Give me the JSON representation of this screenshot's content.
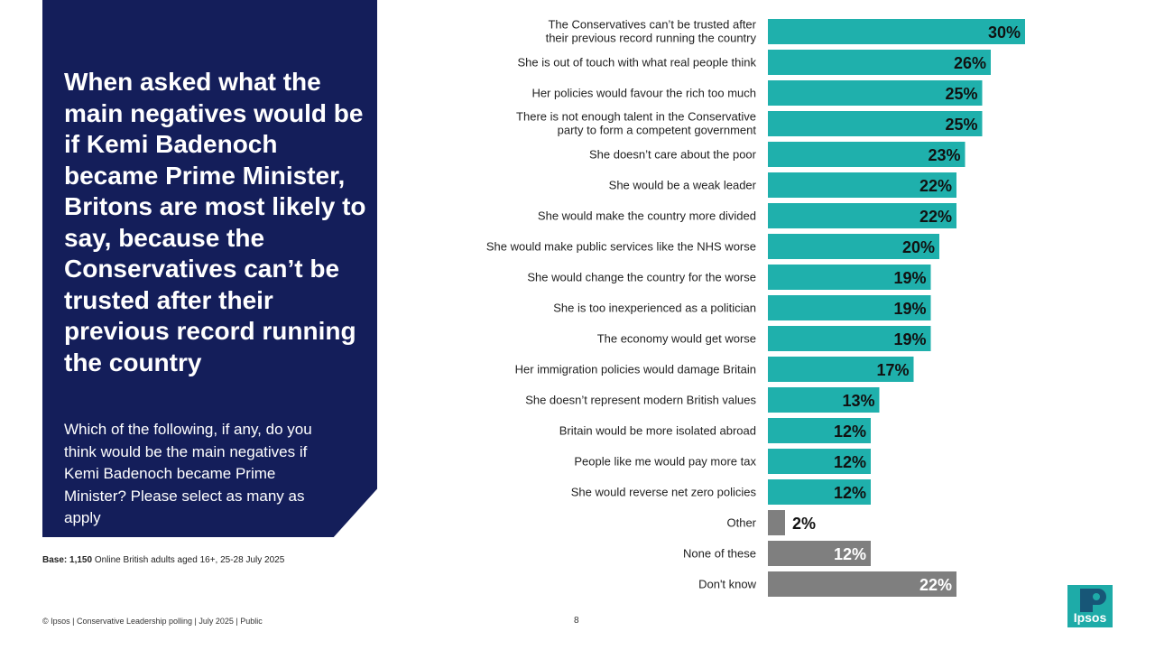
{
  "headline": "When asked what the main negatives would be if Kemi Badenoch became Prime Minister, Britons are most likely to say, because the Conservatives can’t be trusted after their previous record running the country",
  "question": "Which of the following, if any, do you think would be the main negatives  if Kemi Badenoch became Prime Minister? Please select as many as apply",
  "base": {
    "label": "Base:",
    "count": "1,150",
    "text": " Online British adults aged 16+,  25-28 July 2025"
  },
  "footer": "© Ipsos | Conservative Leadership polling | July 2025 | Public",
  "page_number": "8",
  "logo": {
    "text": "Ipsos",
    "icon": "ipsos-logo-icon",
    "color": "#1eaba8"
  },
  "colors": {
    "panel": "#141e5a",
    "bar": "#1fb0ac",
    "bar_other": "#7f7f7f"
  },
  "chart_data": {
    "type": "bar",
    "orientation": "horizontal",
    "title": "",
    "xlabel": "",
    "ylabel": "",
    "value_suffix": "%",
    "xlim": [
      0,
      30
    ],
    "grid": false,
    "legend": "none",
    "categories": [
      [
        "The Conservatives can’t be trusted after",
        "their previous record running the country"
      ],
      [
        "She is out of touch with what real people think"
      ],
      [
        "Her policies would favour the rich too much"
      ],
      [
        "There is not enough talent in the Conservative",
        "party to form a competent government"
      ],
      [
        "She doesn’t care about the poor"
      ],
      [
        "She would be a weak leader"
      ],
      [
        "She would make the country more divided"
      ],
      [
        "She would make public services like the NHS worse"
      ],
      [
        "She would change the country for the worse"
      ],
      [
        "She is too inexperienced as a politician"
      ],
      [
        "The economy would get worse"
      ],
      [
        "Her immigration policies would damage Britain"
      ],
      [
        "She doesn’t represent modern British values"
      ],
      [
        "Britain would be more isolated abroad"
      ],
      [
        "People like me would pay more tax"
      ],
      [
        "She would reverse net zero policies"
      ],
      [
        "Other"
      ],
      [
        "None of these"
      ],
      [
        "Don't know"
      ]
    ],
    "values": [
      30,
      26,
      25,
      25,
      23,
      22,
      22,
      20,
      19,
      19,
      19,
      17,
      13,
      12,
      12,
      12,
      2,
      12,
      22
    ],
    "bar_color_group": [
      "main",
      "main",
      "main",
      "main",
      "main",
      "main",
      "main",
      "main",
      "main",
      "main",
      "main",
      "main",
      "main",
      "main",
      "main",
      "main",
      "other",
      "other",
      "other"
    ]
  }
}
